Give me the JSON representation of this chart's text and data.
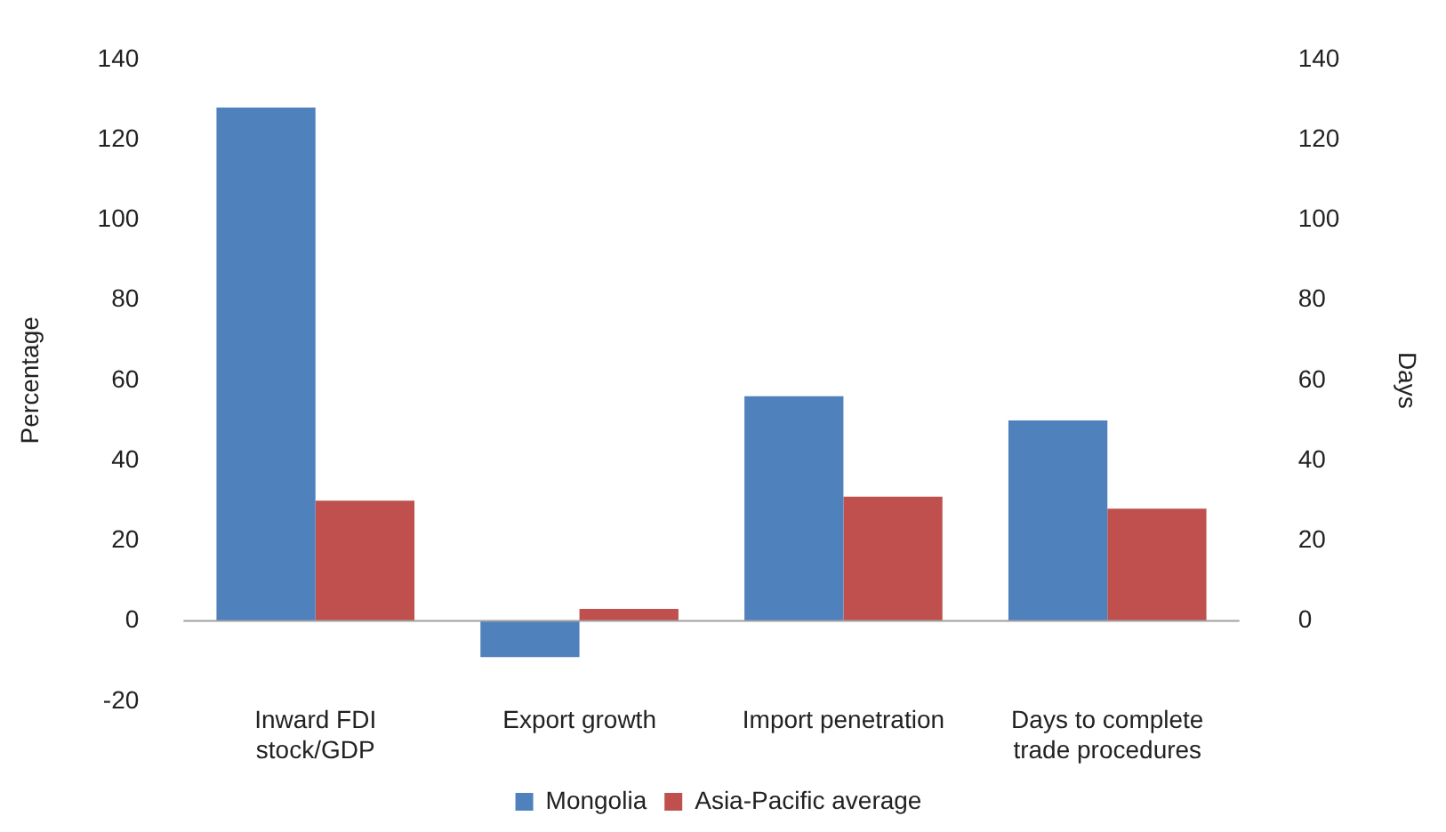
{
  "chart_data": {
    "type": "bar",
    "categories": [
      "Inward FDI stock/GDP",
      "Export growth",
      "Import penetration",
      "Days to complete trade procedures"
    ],
    "series": [
      {
        "name": "Mongolia",
        "color": "#4f81bd",
        "values": [
          128,
          -9,
          56,
          50
        ]
      },
      {
        "name": "Asia-Pacific average",
        "color": "#c0504d",
        "values": [
          30,
          3,
          31,
          28
        ]
      }
    ],
    "ylabel": "Percentage",
    "y2label": "Days",
    "ylim": [
      -20,
      140
    ],
    "yticks": [
      -20,
      0,
      20,
      40,
      60,
      80,
      100,
      120,
      140
    ],
    "y2lim": [
      0,
      140
    ],
    "y2ticks": [
      0,
      20,
      40,
      60,
      80,
      100,
      120,
      140
    ],
    "legend": "bottom"
  }
}
